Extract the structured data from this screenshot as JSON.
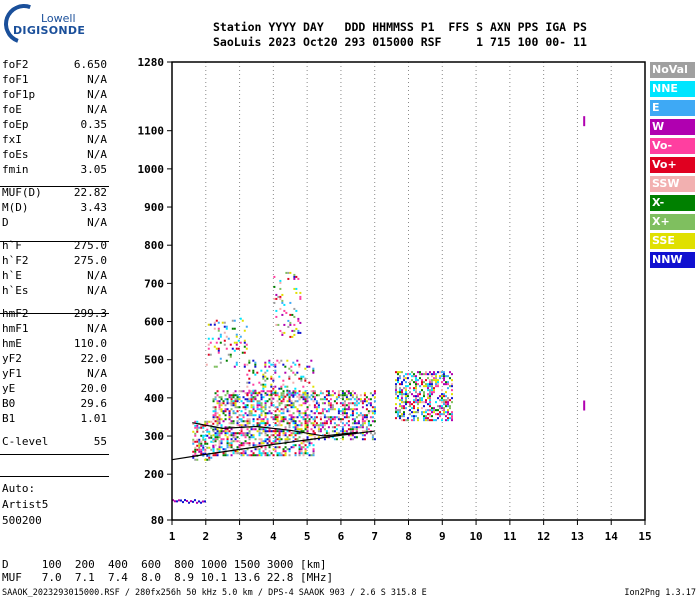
{
  "logo": {
    "line1": "Lowell",
    "line2": "DIGISONDE"
  },
  "header": {
    "line1": "Station YYYY DAY   DDD HHMMSS P1  FFS S AXN PPS IGA PS",
    "line2": "SaoLuis 2023 Oct20 293 015000 RSF     1 715 100 00- 11"
  },
  "params": [
    {
      "name": "foF2",
      "value": "6.650"
    },
    {
      "name": "foF1",
      "value": "N/A"
    },
    {
      "name": "foF1p",
      "value": "N/A"
    },
    {
      "name": "foE",
      "value": "N/A"
    },
    {
      "name": "foEp",
      "value": "0.35"
    },
    {
      "name": "fxI",
      "value": "N/A"
    },
    {
      "name": "foEs",
      "value": "N/A"
    },
    {
      "name": "fmin",
      "value": "3.05"
    },
    {
      "name": "MUF(D)",
      "value": "22.82"
    },
    {
      "name": "M(D)",
      "value": "3.43"
    },
    {
      "name": "D",
      "value": "N/A"
    },
    {
      "name": "h`F",
      "value": "275.0"
    },
    {
      "name": "h`F2",
      "value": "275.0"
    },
    {
      "name": "h`E",
      "value": "N/A"
    },
    {
      "name": "h`Es",
      "value": "N/A"
    },
    {
      "name": "hmF2",
      "value": "299.3"
    },
    {
      "name": "hmF1",
      "value": "N/A"
    },
    {
      "name": "hmE",
      "value": "110.0"
    },
    {
      "name": "yF2",
      "value": "22.0"
    },
    {
      "name": "yF1",
      "value": "N/A"
    },
    {
      "name": "yE",
      "value": "20.0"
    },
    {
      "name": "B0",
      "value": "29.6"
    },
    {
      "name": "B1",
      "value": "1.01"
    },
    {
      "name": "C-level",
      "value": "55"
    }
  ],
  "extra_lines": [
    "Auto:",
    "Artist5",
    "500200"
  ],
  "legend": [
    {
      "label": "NoVal",
      "color": "#a0a0a0"
    },
    {
      "label": "NNE",
      "color": "#00e5ff"
    },
    {
      "label": "E",
      "color": "#3ea9f5"
    },
    {
      "label": "W",
      "color": "#b000b0"
    },
    {
      "label": "Vo-",
      "color": "#ff3fa0"
    },
    {
      "label": "Vo+",
      "color": "#e00020"
    },
    {
      "label": "SSW",
      "color": "#f2b0b0"
    },
    {
      "label": "X-",
      "color": "#008000"
    },
    {
      "label": "X+",
      "color": "#7fbf5f"
    },
    {
      "label": "SSE",
      "color": "#e0e000"
    },
    {
      "label": "NNW",
      "color": "#1010d0"
    }
  ],
  "bottom": {
    "line1": "D     100  200  400  600  800 1000 1500 3000 [km]",
    "line2": "MUF   7.0  7.1  7.4  8.0  8.9 10.1 13.6 22.8 [MHz]",
    "line3": "SAAOK_2023293015000.RSF / 280fx256h 50 kHz 5.0 km / DPS-4 SAAOK 903 / 2.6 S 315.8 E",
    "version": "Ion2Png 1.3.17"
  },
  "chart_data": {
    "type": "scatter",
    "title": "",
    "xlabel": "",
    "ylabel": "",
    "xlim": [
      1,
      15
    ],
    "ylim": [
      80,
      1280
    ],
    "x_ticks": [
      1,
      2,
      3,
      4,
      5,
      6,
      7,
      8,
      9,
      10,
      11,
      12,
      13,
      14,
      15
    ],
    "y_ticks": [
      80,
      200,
      300,
      400,
      500,
      600,
      700,
      800,
      900,
      1000,
      1100,
      1280
    ],
    "grid": "vertical-dotted",
    "legend_placement": "right-outside",
    "trace": {
      "description_regions": [
        {
          "x": [
            1.6,
            2.2
          ],
          "y": [
            240,
            340
          ],
          "density": 0.9
        },
        {
          "x": [
            2.2,
            5.2
          ],
          "y": [
            250,
            420
          ],
          "density": 0.9
        },
        {
          "x": [
            3.2,
            5.2
          ],
          "y": [
            400,
            500
          ],
          "density": 0.35
        },
        {
          "x": [
            2.0,
            3.2
          ],
          "y": [
            480,
            610
          ],
          "density": 0.25
        },
        {
          "x": [
            4.0,
            4.8
          ],
          "y": [
            560,
            730
          ],
          "density": 0.2
        },
        {
          "x": [
            5.2,
            7.0
          ],
          "y": [
            290,
            420
          ],
          "density": 0.8
        },
        {
          "x": [
            7.6,
            9.3
          ],
          "y": [
            340,
            470
          ],
          "density": 0.85
        }
      ],
      "low_layer": {
        "x": [
          1.0,
          2.0
        ],
        "y": [
          125,
          135
        ]
      }
    },
    "profile_line": {
      "x": [
        1.0,
        2.0,
        3.0,
        4.0,
        5.0,
        6.0,
        7.0
      ],
      "y": [
        238,
        252,
        265,
        278,
        290,
        302,
        313
      ]
    },
    "o_trace_fit": {
      "x": [
        1.6,
        2.5,
        3.5,
        4.5,
        5.5,
        6.5
      ],
      "y": [
        335,
        320,
        325,
        315,
        300,
        310
      ]
    },
    "markers": [
      {
        "x": 13.2,
        "y": 1125,
        "color": "#b000b0"
      },
      {
        "x": 13.2,
        "y": 380,
        "color": "#b000b0"
      }
    ]
  }
}
